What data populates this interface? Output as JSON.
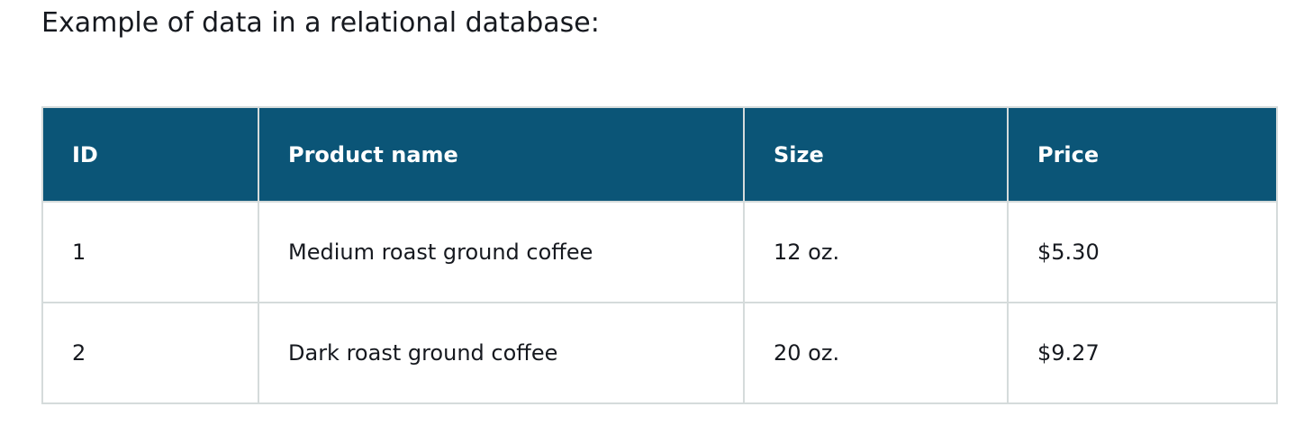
{
  "intro_text": "Example of data in a relational database:",
  "table": {
    "headers": [
      "ID",
      "Product name",
      "Size",
      "Price"
    ],
    "rows": [
      [
        "1",
        "Medium roast ground coffee",
        "12 oz.",
        "$5.30"
      ],
      [
        "2",
        "Dark roast ground coffee",
        "20 oz.",
        "$9.27"
      ]
    ]
  },
  "colors": {
    "header_background": "#0b5577",
    "header_text": "#ffffff",
    "border": "#d5dbdb",
    "body_text": "#16191f"
  }
}
